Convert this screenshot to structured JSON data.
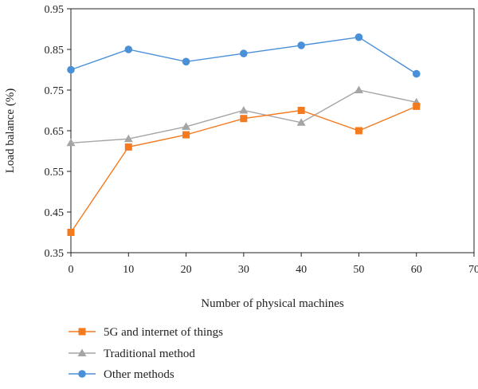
{
  "chart_data": {
    "type": "line",
    "xlabel": "Number of physical machines",
    "ylabel": "Load balance (%)",
    "xlim": [
      0,
      70
    ],
    "ylim": [
      0.35,
      0.95
    ],
    "xticks": [
      "0",
      "10",
      "20",
      "30",
      "40",
      "50",
      "60",
      "70"
    ],
    "yticks": [
      "0.35",
      "0.45",
      "0.55",
      "0.65",
      "0.75",
      "0.85",
      "0.95"
    ],
    "grid": false,
    "legend_position": "bottom-left",
    "x": [
      0,
      10,
      20,
      30,
      40,
      50,
      60
    ],
    "series": [
      {
        "name": "5G and internet of things",
        "marker": "square",
        "color": "#f47a20",
        "values": [
          0.4,
          0.61,
          0.64,
          0.68,
          0.7,
          0.65,
          0.71
        ]
      },
      {
        "name": "Traditional method",
        "marker": "triangle",
        "color": "#a5a5a5",
        "values": [
          0.62,
          0.63,
          0.66,
          0.7,
          0.67,
          0.75,
          0.72
        ]
      },
      {
        "name": "Other methods",
        "marker": "circle",
        "color": "#4a90d9",
        "values": [
          0.8,
          0.85,
          0.82,
          0.84,
          0.86,
          0.88,
          0.79
        ]
      }
    ]
  }
}
